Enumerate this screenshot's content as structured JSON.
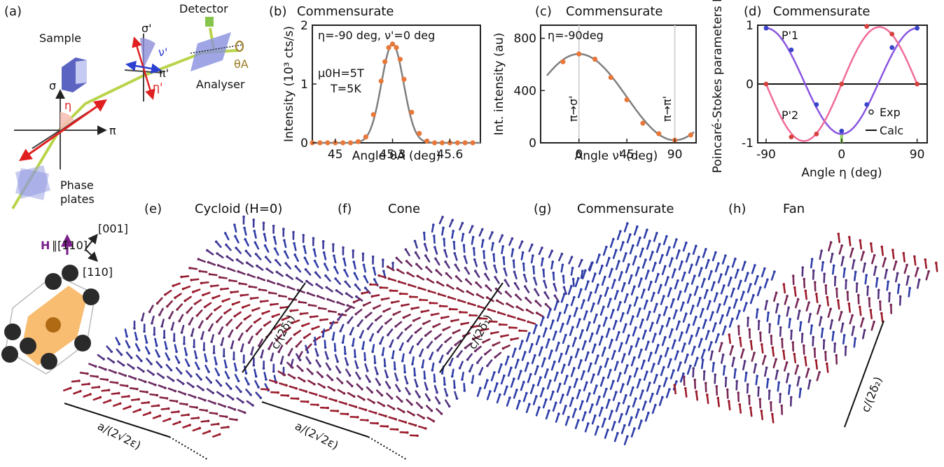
{
  "colors": {
    "fit": "#7f7f7f",
    "points": "#e8773a",
    "p1": "#8a55e0",
    "p2": "#f06b9a",
    "p1_points": "#3a44c8",
    "p2_points": "#d6413d",
    "beam": "#b9d44a",
    "red_arrow": "#e02020",
    "blue_arrow": "#2b3fd0",
    "spin_red": "#9b1b2b",
    "spin_blue": "#2e3ea8",
    "sample": "#6a74c8",
    "cell": "#f5a742",
    "atom": "#2a2a2a",
    "field_arrow": "#7a1f8a"
  },
  "panel_a": {
    "letter": "(a)",
    "labels": {
      "sample": "Sample",
      "detector": "Detector",
      "analyser": "Analyser",
      "phase_plates": "Phase\nplates",
      "sigma": "σ",
      "pi": "π",
      "eta": "η",
      "sigma_p": "σ'",
      "pi_p": "π'",
      "nu_p": "ν'",
      "eta_p": "η'",
      "theta_a": "θA"
    }
  },
  "panel_crystal": {
    "field": "H",
    "field_dir": "∥[1̄10]",
    "dir_001": "[001]",
    "dir_110": "[110]"
  },
  "panels_bottom": [
    {
      "letter": "(e)",
      "title": "Cycloid (H=0)",
      "label_c": "c/(2δ₁)",
      "label_a": "a/(2√2ε)"
    },
    {
      "letter": "(f)",
      "title": "Cone",
      "label_c": "c/(2δ₁)",
      "label_a": "a/(2√2ε)"
    },
    {
      "letter": "(g)",
      "title": "Commensurate"
    },
    {
      "letter": "(h)",
      "title": "Fan",
      "label_c": "c/(2δ₂)"
    }
  ],
  "chart_data": [
    {
      "panel": "(b)",
      "type": "scatter",
      "title": "Commensurate",
      "xlabel": "Angle θA (deg)",
      "ylabel": "Intensity (10³ cts/s)",
      "xlim": [
        44.88,
        45.76
      ],
      "ylim": [
        0,
        2.0
      ],
      "xticks": [
        45,
        45.3,
        45.6
      ],
      "xticklabels": [
        "45",
        "45.3",
        "45.6"
      ],
      "yticks": [
        0,
        1,
        2
      ],
      "annotations": [
        "η=-90 deg, ν'=0 deg",
        "μ0H=5T",
        "T=5K"
      ],
      "series": [
        {
          "role": "data",
          "x": [
            44.88,
            44.92,
            44.96,
            45.0,
            45.04,
            45.08,
            45.12,
            45.16,
            45.2,
            45.24,
            45.26,
            45.28,
            45.3,
            45.32,
            45.34,
            45.36,
            45.4,
            45.44,
            45.48,
            45.52,
            45.56,
            45.6,
            45.64,
            45.68,
            45.72
          ],
          "y": [
            0,
            0,
            0,
            0,
            0,
            0,
            0.02,
            0.1,
            0.48,
            1.05,
            1.38,
            1.62,
            1.68,
            1.62,
            1.42,
            1.08,
            0.52,
            0.16,
            0.03,
            0,
            0,
            0,
            0,
            0,
            0
          ]
        },
        {
          "role": "fit",
          "model": "gaussian",
          "center": 45.3,
          "amplitude": 1.68,
          "sigma": 0.058
        }
      ]
    },
    {
      "panel": "(c)",
      "type": "scatter",
      "title": "Commensurate",
      "xlabel": "Angle ν' (deg)",
      "ylabel": "Int. intensity (au)",
      "xlim": [
        -36,
        110
      ],
      "ylim": [
        0,
        900
      ],
      "xticks": [
        0,
        45,
        90
      ],
      "yticks": [
        0,
        400,
        800
      ],
      "annotations": [
        "η=-90deg",
        "π→σ'",
        "π→π'"
      ],
      "series": [
        {
          "role": "data",
          "x": [
            -15,
            0,
            15,
            30,
            45,
            60,
            75,
            90,
            105
          ],
          "y": [
            620,
            680,
            640,
            500,
            330,
            150,
            70,
            20,
            60
          ]
        },
        {
          "role": "fit",
          "model": "cos2",
          "offset": 20,
          "amplitude": 660,
          "x_from": -30,
          "x_to": 108
        }
      ]
    },
    {
      "panel": "(d)",
      "type": "line",
      "title": "Commensurate",
      "xlabel": "Angle η (deg)",
      "ylabel": "Poincaré-Stokes parameters P",
      "xlim": [
        -100,
        102
      ],
      "ylim": [
        -1.0,
        1.0
      ],
      "xticks": [
        -90,
        0,
        90
      ],
      "yticks": [
        -1,
        0,
        1
      ],
      "legend": [
        "Exp",
        "Calc"
      ],
      "legend_position": "bottom-right",
      "series": [
        {
          "name": "P'1",
          "x": [
            -90,
            -60,
            -30,
            0,
            30,
            60,
            90
          ],
          "y": [
            0.95,
            0.58,
            -0.35,
            -0.8,
            -0.35,
            0.62,
            0.95
          ]
        },
        {
          "name": "P'2",
          "x": [
            -90,
            -60,
            -30,
            0,
            30,
            60,
            90
          ],
          "y": [
            0.0,
            -0.9,
            -0.85,
            0.0,
            0.98,
            0.85,
            0.0
          ]
        }
      ]
    }
  ]
}
